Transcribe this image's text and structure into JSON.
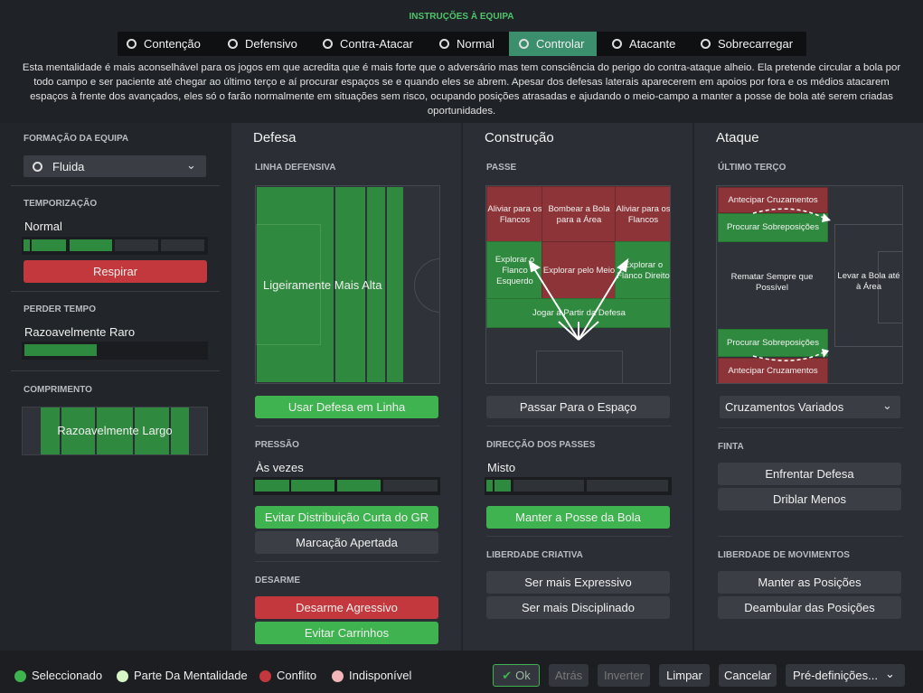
{
  "header": {
    "title": "INSTRUÇÕES À EQUIPA",
    "tabs": [
      "Contenção",
      "Defensivo",
      "Contra-Atacar",
      "Normal",
      "Controlar",
      "Atacante",
      "Sobrecarregar"
    ],
    "description": "Esta mentalidade é mais aconselhável para os jogos em que acredita que é mais forte que o adversário mas tem consciência do perigo do contra-ataque alheio. Ela pretende circular a bola por todo campo e ser paciente até chegar ao último terço e aí procurar espaços se e quando eles se abrem. Apesar dos defesas laterais aparecerem em apoios por fora e os médios atacarem espaços à frente dos avançados, eles só o farão normalmente em situações sem risco, ocupando posições atrasadas e ajudando o meio-campo a manter a posse de bola até serem criadas oportunidades."
  },
  "left_panel": {
    "formation": {
      "label": "FORMAÇÃO DA EQUIPA",
      "value": "Fluida"
    },
    "tempo": {
      "label": "TEMPORIZAÇÃO",
      "value": "Normal",
      "button": "Respirar"
    },
    "time_wasting": {
      "label": "PERDER TEMPO",
      "value": "Razoavelmente Raro"
    },
    "width": {
      "label": "COMPRIMENTO",
      "value": "Razoavelmente Largo"
    }
  },
  "defence": {
    "title": "Defesa",
    "line_label": "LINHA DEFENSIVA",
    "line_value": "Ligeiramente Mais Alta",
    "line_button": "Usar Defesa em Linha",
    "press_label": "PRESSÃO",
    "press_value": "Às vezes",
    "press_buttons": [
      "Evitar Distribuição Curta do GR",
      "Marcação Apertada"
    ],
    "tackle_label": "DESARME",
    "tackle_buttons": [
      "Desarme Agressivo",
      "Evitar Carrinhos"
    ]
  },
  "build_up": {
    "title": "Construção",
    "pass_label": "PASSE",
    "zones": [
      "Aliviar para os Flancos",
      "Bombear a Bola para a Área",
      "Aliviar para os Flancos",
      "Explorar o Flanco Esquerdo",
      "Explorar pelo Meio",
      "Explorar o Flanco Direito",
      "Jogar a Partir da Defesa"
    ],
    "pass_button": "Passar Para o Espaço",
    "direction_label": "DIRECÇÃO DOS PASSES",
    "direction_value": "Misto",
    "direction_button": "Manter a Posse da Bola",
    "creative_label": "LIBERDADE CRIATIVA",
    "creative_buttons": [
      "Ser mais Expressivo",
      "Ser mais Disciplinado"
    ]
  },
  "attack": {
    "title": "Ataque",
    "third_label": "ÚLTIMO TERÇO",
    "zones": [
      "Antecipar Cruzamentos",
      "Procurar Sobreposições",
      "Rematar Sempre que Possível",
      "Levar a Bola até à Área",
      "Procurar Sobreposições",
      "Antecipar Cruzamentos"
    ],
    "cross_dropdown": "Cruzamentos Variados",
    "dribble_label": "FINTA",
    "dribble_buttons": [
      "Enfrentar Defesa",
      "Driblar Menos"
    ],
    "movement_label": "LIBERDADE DE MOVIMENTOS",
    "movement_buttons": [
      "Manter as Posições",
      "Deambular das Posições"
    ]
  },
  "footer": {
    "legend": [
      "Seleccionado",
      "Parte Da Mentalidade",
      "Conflito",
      "Indisponível"
    ],
    "buttons": [
      "Ok",
      "Atrás",
      "Inverter",
      "Limpar",
      "Cancelar",
      "Pré-definições..."
    ]
  }
}
